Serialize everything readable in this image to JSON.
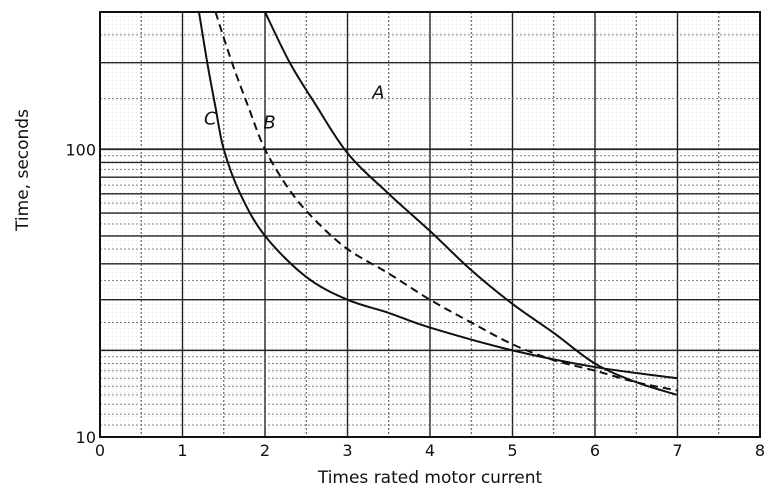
{
  "chart_data": {
    "type": "line",
    "title": "",
    "xlabel": "Times rated motor current",
    "ylabel": "Time, seconds",
    "xlim": [
      0,
      8
    ],
    "ylim": [
      10,
      300
    ],
    "y_scale": "log",
    "grid": true,
    "x_ticks": [
      "0",
      "1",
      "2",
      "3",
      "4",
      "5",
      "6",
      "7",
      "8"
    ],
    "y_ticks": [
      {
        "value": 10,
        "label": "10"
      },
      {
        "value": 100,
        "label": "100"
      }
    ],
    "series": [
      {
        "name": "A",
        "style": "solid",
        "x": [
          2.0,
          2.3,
          2.6,
          3.0,
          3.5,
          4.0,
          4.5,
          5.0,
          5.5,
          6.0,
          6.5,
          7.0
        ],
        "y": [
          300,
          200,
          145,
          97,
          70,
          52,
          38,
          29,
          23,
          18,
          15.5,
          14
        ]
      },
      {
        "name": "B",
        "style": "dashed",
        "x": [
          1.4,
          1.6,
          1.8,
          2.0,
          2.3,
          2.6,
          3.0,
          3.5,
          4.0,
          4.5,
          5.0,
          5.5,
          6.0,
          6.5,
          7.0
        ],
        "y": [
          300,
          200,
          140,
          100,
          72,
          57,
          45,
          37,
          30,
          25,
          21,
          18.5,
          17,
          15.5,
          14.5
        ]
      },
      {
        "name": "C",
        "style": "solid",
        "x": [
          1.2,
          1.3,
          1.4,
          1.5,
          1.7,
          2.0,
          2.5,
          3.0,
          3.5,
          4.0,
          5.0,
          6.0,
          7.0
        ],
        "y": [
          300,
          200,
          140,
          100,
          70,
          50,
          36,
          30,
          27,
          24,
          20,
          17.5,
          16
        ]
      }
    ]
  }
}
